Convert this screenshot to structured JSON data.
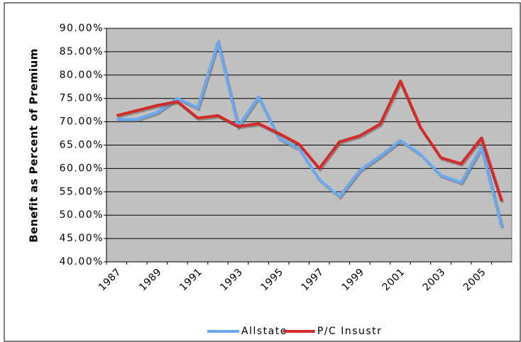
{
  "chart_data": {
    "type": "line",
    "y_label": "Benefit as Percent of Premium",
    "categories": [
      "1987",
      null,
      "1989",
      null,
      "1991",
      null,
      "1993",
      null,
      "1995",
      null,
      "1997",
      null,
      "1999",
      null,
      "2001",
      null,
      "2003",
      null,
      "2005",
      null
    ],
    "series": [
      {
        "name": "Allstate",
        "color": "#6aa9f0",
        "values": [
          70.5,
          70.5,
          72,
          75,
          73,
          87,
          69,
          75.3,
          66.5,
          64.2,
          57.6,
          54,
          59.6,
          62.6,
          66,
          63,
          58.5,
          57,
          64.5,
          47.5
        ]
      },
      {
        "name": "P/C Insustr",
        "color": "#d42a2a",
        "values": [
          71.3,
          72.4,
          73.5,
          74.3,
          70.8,
          71.3,
          69,
          69.6,
          67.5,
          65.2,
          60,
          65.7,
          67,
          69.5,
          78.7,
          68.7,
          62.3,
          61,
          66.5,
          53
        ]
      }
    ],
    "ylim": [
      40,
      90
    ],
    "yticks": [
      {
        "value": 40,
        "label": "40.00%"
      },
      {
        "value": 45,
        "label": "45.00%"
      },
      {
        "value": 50,
        "label": "50.00%"
      },
      {
        "value": 55,
        "label": "55.00%"
      },
      {
        "value": 60,
        "label": "60.00%"
      },
      {
        "value": 65,
        "label": "65.00%"
      },
      {
        "value": 70,
        "label": "70.00%"
      },
      {
        "value": 75,
        "label": "75.00%"
      },
      {
        "value": 80,
        "label": "80.00%"
      },
      {
        "value": 85,
        "label": "85.00%"
      },
      {
        "value": 90,
        "label": "90.00%"
      }
    ],
    "grid": true,
    "legend": "bottom"
  }
}
